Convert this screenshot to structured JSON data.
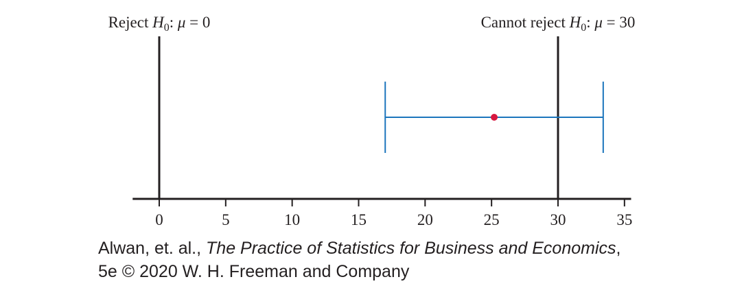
{
  "chart_data": {
    "type": "interval",
    "xlim": [
      -2,
      35.5
    ],
    "xticks": [
      0,
      5,
      10,
      15,
      20,
      25,
      30,
      35
    ],
    "interval": {
      "lower": 17.0,
      "upper": 33.4,
      "estimate": 25.2
    },
    "reference_lines": [
      {
        "x": 0,
        "label_prefix": "Reject ",
        "label_symbol": "H",
        "label_subscript": "0",
        "label_mid": ": ",
        "label_param": "μ",
        "label_value": " = 0"
      },
      {
        "x": 30,
        "label_prefix": "Cannot reject ",
        "label_symbol": "H",
        "label_subscript": "0",
        "label_mid": ": ",
        "label_param": "μ",
        "label_value": " = 30"
      }
    ],
    "grid": false,
    "colors": {
      "interval": "#1b75bc",
      "estimate": "#d7173f",
      "axis": "#231f20"
    }
  },
  "credit": {
    "line1_prefix": "Alwan, et. al., ",
    "line1_title": "The Practice of Statistics for Business and Economics",
    "line1_suffix": ",",
    "line2": "5e © 2020 W. H. Freeman and Company"
  }
}
